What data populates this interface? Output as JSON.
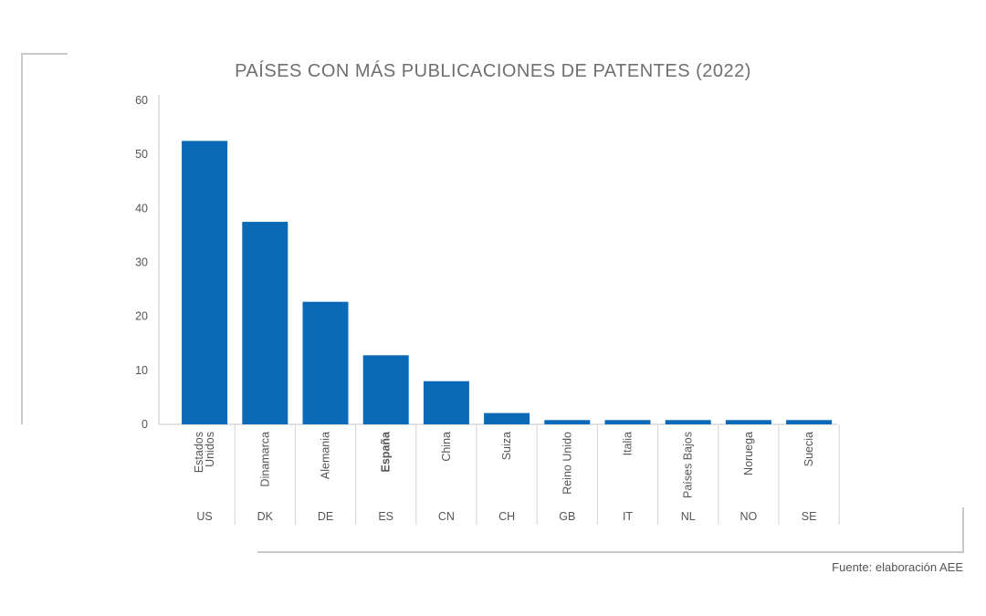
{
  "chart_data": {
    "type": "bar",
    "title": "PAÍSES CON MÁS PUBLICACIONES DE PATENTES (2022)",
    "categories": [
      "Estados Unidos",
      "Dinamarca",
      "Alemania",
      "España",
      "China",
      "Suiza",
      "Reino Unido",
      "Italia",
      "Países Bajos",
      "Noruega",
      "Suecia"
    ],
    "category_lines": [
      [
        "Estados",
        "Unidos"
      ],
      [
        "Dinamarca"
      ],
      [
        "Alemania"
      ],
      [
        "España"
      ],
      [
        "China"
      ],
      [
        "Suiza"
      ],
      [
        "Reino Unido"
      ],
      [
        "Italia"
      ],
      [
        "Países Bajos"
      ],
      [
        "Noruega"
      ],
      [
        "Suecia"
      ]
    ],
    "codes": [
      "US",
      "DK",
      "DE",
      "ES",
      "CN",
      "CH",
      "GB",
      "IT",
      "NL",
      "NO",
      "SE"
    ],
    "highlight_category": "España",
    "values": [
      52.5,
      37.5,
      22.7,
      12.8,
      8.0,
      2.1,
      0.8,
      0.8,
      0.8,
      0.8,
      0.8
    ],
    "ylim": [
      0,
      60
    ],
    "yticks": [
      0,
      10,
      20,
      30,
      40,
      50,
      60
    ],
    "xlabel": "",
    "ylabel": "",
    "bar_color": "#0a6ab8",
    "legend": "none",
    "grid": false
  },
  "source": "Fuente: elaboración AEE"
}
